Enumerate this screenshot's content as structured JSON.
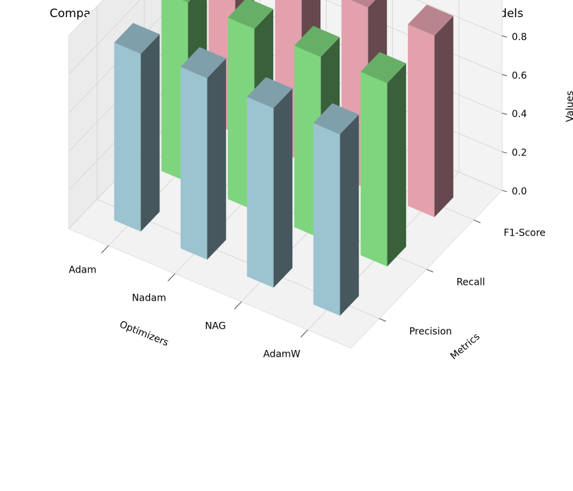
{
  "chart_data": {
    "type": "bar3d",
    "title": "Comparison of Precision, Recall, and F1-Score Across Optimizers for LSTM Models",
    "xlabel": "Optimizers",
    "ylabel": "Metrics",
    "zlabel": "Values",
    "x_categories": [
      "Adam",
      "Nadam",
      "NAG",
      "AdamW"
    ],
    "y_categories": [
      "Precision",
      "Recall",
      "F1-Score"
    ],
    "z_ticks": [
      "0.0",
      "0.2",
      "0.4",
      "0.6",
      "0.8"
    ],
    "zlim": [
      0,
      1.0
    ],
    "grid": true,
    "series": [
      {
        "name": "Precision",
        "color": "#9BC3D0",
        "values": [
          0.92,
          0.94,
          0.93,
          0.94
        ]
      },
      {
        "name": "Recall",
        "color": "#7ED57E",
        "values": [
          0.93,
          0.94,
          0.94,
          0.95
        ]
      },
      {
        "name": "F1-Score",
        "color": "#E3A1AD",
        "values": [
          0.95,
          0.95,
          0.94,
          0.94
        ]
      }
    ]
  }
}
